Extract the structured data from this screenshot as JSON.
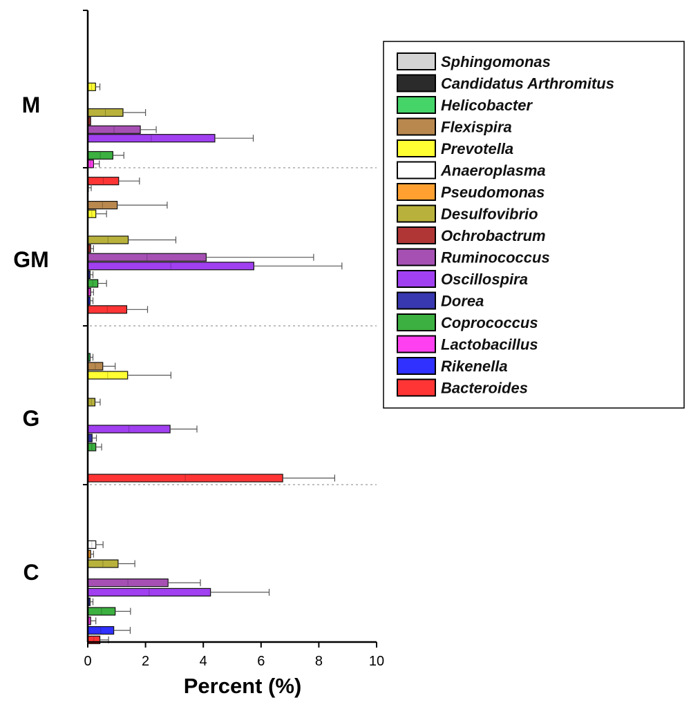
{
  "chart_data": {
    "type": "bar",
    "orientation": "horizontal",
    "xlabel": "Percent (%)",
    "xlim": [
      0,
      10
    ],
    "xticks": [
      "0",
      "2",
      "4",
      "6",
      "8",
      "10"
    ],
    "legend_position": "top-right",
    "groups": [
      "M",
      "GM",
      "G",
      "C"
    ],
    "series": [
      {
        "name": "Sphingomonas",
        "color": "#d4d4d4",
        "values": {
          "M": 0.0,
          "GM": 0.0,
          "G": 0.0,
          "C": 0.0
        },
        "errors": {
          "M": 0.0,
          "GM": 0.0,
          "G": 0.0,
          "C": 0.0
        }
      },
      {
        "name": "Candidatus Arthromitus",
        "color": "#2b2b2b",
        "values": {
          "M": 0.0,
          "GM": 0.02,
          "G": 0.0,
          "C": 0.0
        },
        "errors": {
          "M": 0.0,
          "GM": 0.1,
          "G": 0.0,
          "C": 0.0
        }
      },
      {
        "name": "Helicobacter",
        "color": "#44d468",
        "values": {
          "M": 0.0,
          "GM": 0.0,
          "G": 0.08,
          "C": 0.0
        },
        "errors": {
          "M": 0.0,
          "GM": 0.0,
          "G": 0.1,
          "C": 0.0
        }
      },
      {
        "name": "Flexispira",
        "color": "#b8884e",
        "values": {
          "M": 0.0,
          "GM": 1.02,
          "G": 0.52,
          "C": 0.0
        },
        "errors": {
          "M": 0.0,
          "GM": 1.73,
          "G": 0.43,
          "C": 0.0
        }
      },
      {
        "name": "Prevotella",
        "color": "#ffff33",
        "values": {
          "M": 0.27,
          "GM": 0.28,
          "G": 1.38,
          "C": 0.0
        },
        "errors": {
          "M": 0.15,
          "GM": 0.37,
          "G": 1.5,
          "C": 0.0
        }
      },
      {
        "name": "Anaeroplasma",
        "color": "#ffffff",
        "values": {
          "M": 0.0,
          "GM": 0.0,
          "G": 0.0,
          "C": 0.28
        },
        "errors": {
          "M": 0.0,
          "GM": 0.0,
          "G": 0.0,
          "C": 0.25
        }
      },
      {
        "name": "Pseudomonas",
        "color": "#ffa030",
        "values": {
          "M": 0.0,
          "GM": 0.0,
          "G": 0.0,
          "C": 0.1
        },
        "errors": {
          "M": 0.0,
          "GM": 0.0,
          "G": 0.0,
          "C": 0.1
        }
      },
      {
        "name": "Desulfovibrio",
        "color": "#b8b23c",
        "values": {
          "M": 1.22,
          "GM": 1.4,
          "G": 0.25,
          "C": 1.05
        },
        "errors": {
          "M": 0.78,
          "GM": 1.65,
          "G": 0.18,
          "C": 0.58
        }
      },
      {
        "name": "Ochrobactrum",
        "color": "#b03535",
        "values": {
          "M": 0.1,
          "GM": 0.1,
          "G": 0.0,
          "C": 0.0
        },
        "errors": {
          "M": 0.0,
          "GM": 0.1,
          "G": 0.0,
          "C": 0.0
        }
      },
      {
        "name": "Ruminococcus",
        "color": "#a650b4",
        "values": {
          "M": 1.82,
          "GM": 4.1,
          "G": 0.0,
          "C": 2.78
        },
        "errors": {
          "M": 0.55,
          "GM": 3.72,
          "G": 0.0,
          "C": 1.12
        }
      },
      {
        "name": "Oscillospira",
        "color": "#a040f0",
        "values": {
          "M": 4.4,
          "GM": 5.75,
          "G": 2.85,
          "C": 4.25
        },
        "errors": {
          "M": 1.33,
          "GM": 3.05,
          "G": 0.93,
          "C": 2.03
        }
      },
      {
        "name": "Dorea",
        "color": "#3838b0",
        "values": {
          "M": 0.0,
          "GM": 0.08,
          "G": 0.15,
          "C": 0.08
        },
        "errors": {
          "M": 0.0,
          "GM": 0.1,
          "G": 0.15,
          "C": 0.1
        }
      },
      {
        "name": "Coprococcus",
        "color": "#3cb040",
        "values": {
          "M": 0.87,
          "GM": 0.35,
          "G": 0.28,
          "C": 0.95
        },
        "errors": {
          "M": 0.38,
          "GM": 0.3,
          "G": 0.2,
          "C": 0.53
        }
      },
      {
        "name": "Lactobacillus",
        "color": "#ff40f0",
        "values": {
          "M": 0.2,
          "GM": 0.1,
          "G": 0.0,
          "C": 0.1
        },
        "errors": {
          "M": 0.2,
          "GM": 0.1,
          "G": 0.0,
          "C": 0.18
        }
      },
      {
        "name": "Rikenella",
        "color": "#3030ff",
        "values": {
          "M": 0.0,
          "GM": 0.08,
          "G": 0.0,
          "C": 0.9
        },
        "errors": {
          "M": 0.0,
          "GM": 0.1,
          "G": 0.0,
          "C": 0.57
        }
      },
      {
        "name": "Bacteroides",
        "color": "#ff3535",
        "values": {
          "M": 1.07,
          "GM": 1.35,
          "G": 6.75,
          "C": 0.42
        },
        "errors": {
          "M": 0.72,
          "GM": 0.72,
          "G": 1.8,
          "C": 0.3
        }
      }
    ]
  }
}
